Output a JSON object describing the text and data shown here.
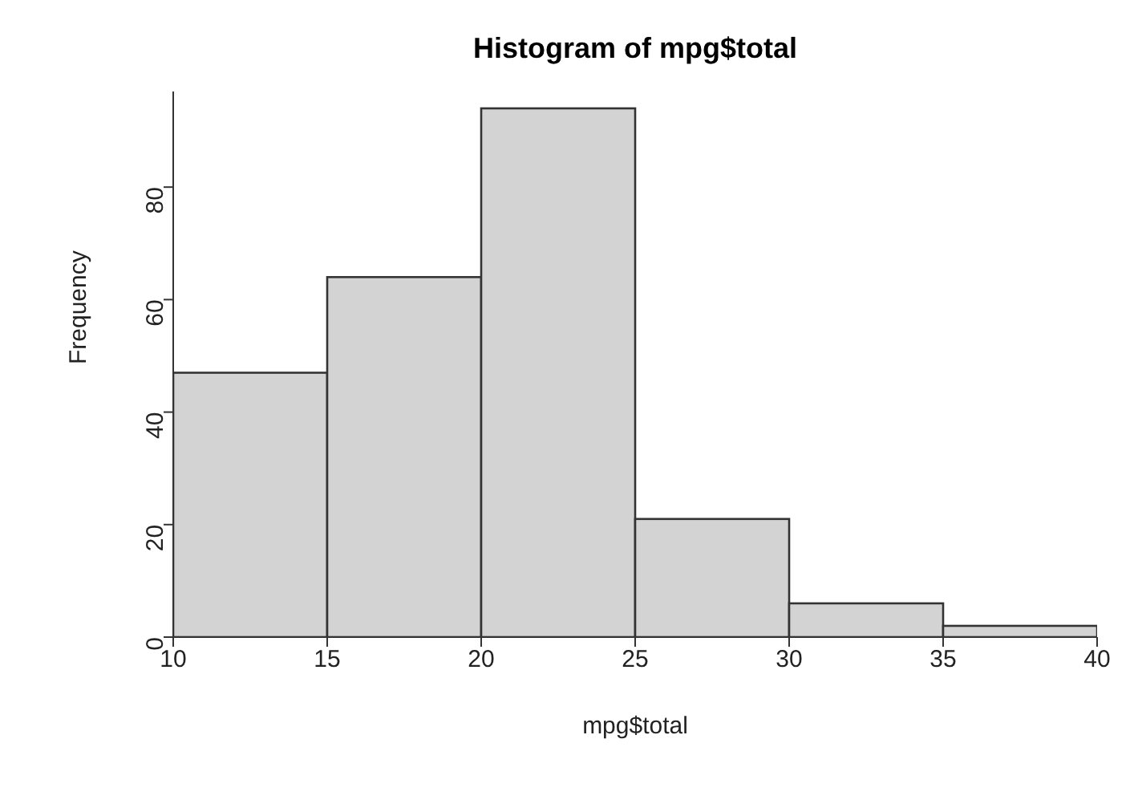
{
  "chart_data": {
    "type": "histogram",
    "title": "Histogram of mpg$total",
    "xlabel": "mpg$total",
    "ylabel": "Frequency",
    "bins": [
      10,
      15,
      20,
      25,
      30,
      35,
      40
    ],
    "values": [
      47,
      64,
      94,
      21,
      6,
      2
    ],
    "color": "#d3d3d3",
    "xlim": [
      10,
      40
    ],
    "xticks": [
      10,
      15,
      20,
      25,
      30,
      35,
      40
    ],
    "ylim": [
      0,
      97
    ],
    "yticks": [
      0,
      20,
      40,
      60,
      80
    ],
    "grid": false
  }
}
